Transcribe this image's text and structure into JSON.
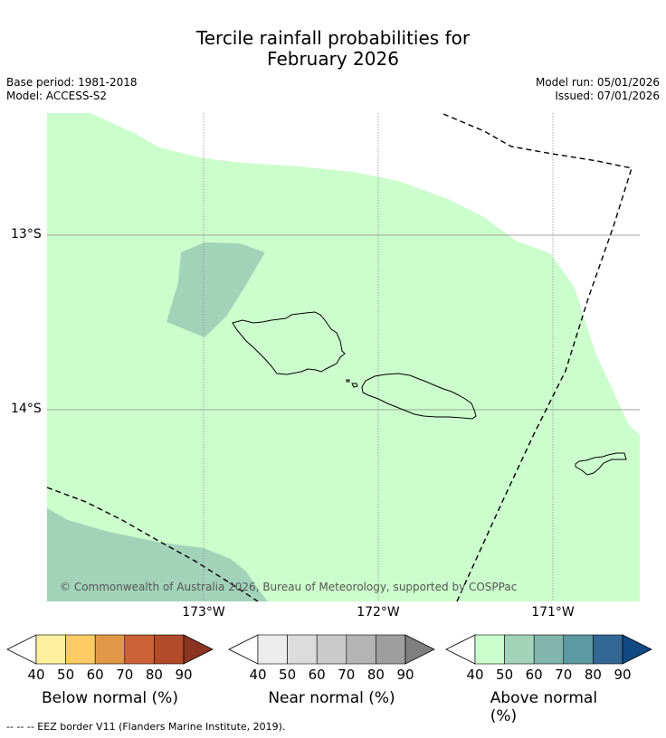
{
  "title": {
    "line1": "Tercile rainfall probabilities for",
    "line2": "February 2026"
  },
  "meta": {
    "base_period": "Base period: 1981-2018",
    "model": "Model: ACCESS-S2",
    "model_run": "Model run: 05/01/2026",
    "issued": "Issued: 07/01/2026"
  },
  "map": {
    "lat_labels": [
      "13°S",
      "14°S"
    ],
    "lon_labels": [
      "173°W",
      "172°W",
      "171°W"
    ],
    "copyright": "© Commonwealth of Australia 2026, Bureau of Meteorology, supported by COSPPac",
    "colors": {
      "above_40_50": "#ccfdcc",
      "above_50_60": "#a2d3b9",
      "coast": "#000000"
    }
  },
  "legends": [
    {
      "name": "below",
      "title": "Below normal (%)",
      "ticks": [
        "40",
        "50",
        "60",
        "70",
        "80",
        "90"
      ],
      "colors": [
        "#fff0a0",
        "#fdcc64",
        "#e29748",
        "#cc6236",
        "#b14b2a",
        "#8c3422"
      ]
    },
    {
      "name": "near",
      "title": "Near normal (%)",
      "ticks": [
        "40",
        "50",
        "60",
        "70",
        "80",
        "90"
      ],
      "colors": [
        "#ececec",
        "#dcdcdc",
        "#cacaca",
        "#b4b4b4",
        "#9e9e9e",
        "#808080"
      ]
    },
    {
      "name": "above",
      "title": "Above normal (%)",
      "ticks": [
        "40",
        "50",
        "60",
        "70",
        "80",
        "90"
      ],
      "colors": [
        "#ccfdcc",
        "#a2d3b9",
        "#82b5ac",
        "#5b9aa2",
        "#336895",
        "#114884"
      ]
    }
  ],
  "footer": "--  --  -- EEZ border V11 (Flanders Marine Institute, 2019)."
}
